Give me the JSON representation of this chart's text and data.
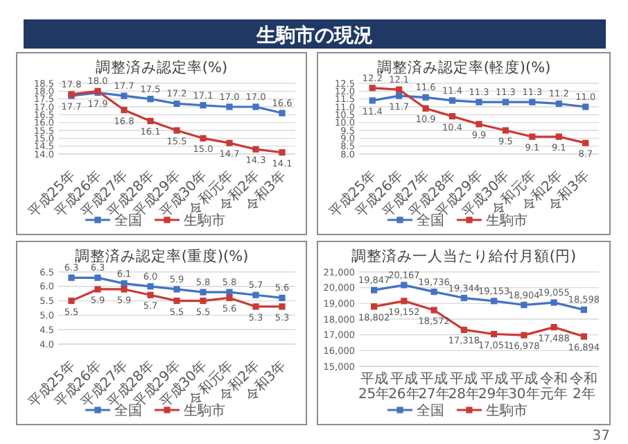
{
  "chart_data": [
    {
      "type": "other",
      "title": "生駒市の現況",
      "annotations": [
        "37"
      ]
    },
    {
      "type": "line",
      "title": "調整済み認定率(%)",
      "categories": [
        "平成25年",
        "平成26年",
        "平成27年",
        "平成28年",
        "平成29年",
        "平成30年",
        "令和元年",
        "令和2年",
        "令和3年"
      ],
      "series": [
        {
          "name": "全国",
          "color": "#4472c4",
          "values": [
            17.7,
            17.9,
            17.7,
            17.5,
            17.2,
            17.1,
            17.0,
            17.0,
            16.6
          ],
          "value_labels": [
            "17.7",
            "17.9",
            "17.7",
            "17.5",
            "17.2",
            "17.1",
            "17.0",
            "17.0",
            "16.6"
          ]
        },
        {
          "name": "生駒市",
          "color": "#c93a36",
          "values": [
            17.8,
            18.0,
            16.8,
            16.1,
            15.5,
            15.0,
            14.7,
            14.3,
            14.1
          ],
          "value_labels": [
            "17.8",
            "18.0",
            "16.8",
            "16.1",
            "15.5",
            "15.0",
            "14.7",
            "14.3",
            "14.1"
          ]
        }
      ],
      "ylim": [
        14,
        18.5
      ],
      "yticks": [
        {
          "value": 14,
          "label": "14.0"
        },
        14.5,
        {
          "value": 15,
          "label": "15.0"
        },
        15.5,
        {
          "value": 16,
          "label": "16.0"
        },
        16.5,
        {
          "value": 17,
          "label": "17.0"
        },
        17.5,
        {
          "value": 18,
          "label": "18.0"
        },
        18.5
      ],
      "grid": "y",
      "legend": "bottom",
      "marker": "square"
    },
    {
      "type": "line",
      "title": "調整済み認定率(軽度)(%)",
      "categories": [
        "平成25年",
        "平成26年",
        "平成27年",
        "平成28年",
        "平成29年",
        "平成30年",
        "令和元年",
        "令和2年",
        "令和3年"
      ],
      "series": [
        {
          "name": "全国",
          "color": "#4472c4",
          "values": [
            11.4,
            11.7,
            11.6,
            11.4,
            11.3,
            11.3,
            11.3,
            11.2,
            11.0
          ],
          "value_labels": [
            "11.4",
            "11.7",
            "11.6",
            "11.4",
            "11.3",
            "11.3",
            "11.3",
            "11.2",
            "11.0"
          ]
        },
        {
          "name": "生駒市",
          "color": "#c93a36",
          "values": [
            12.2,
            12.1,
            10.9,
            10.4,
            9.9,
            9.5,
            9.1,
            9.1,
            8.7
          ],
          "value_labels": [
            "12.2",
            "12.1",
            "10.9",
            "10.4",
            "9.9",
            "9.5",
            "9.1",
            "9.1",
            "8.7"
          ]
        }
      ],
      "ylim": [
        8,
        12.5
      ],
      "yticks": [
        {
          "value": 8,
          "label": "8.0"
        },
        8.5,
        {
          "value": 9,
          "label": "9.0"
        },
        9.5,
        {
          "value": 10,
          "label": "10.0"
        },
        10.5,
        {
          "value": 11,
          "label": "11.0"
        },
        11.5,
        {
          "value": 12,
          "label": "12.0"
        },
        12.5
      ],
      "grid": "y",
      "legend": "bottom",
      "marker": "square"
    },
    {
      "type": "line",
      "title": "調整済み認定率(重度)(%)",
      "categories": [
        "平成25年",
        "平成26年",
        "平成27年",
        "平成28年",
        "平成29年",
        "平成30年",
        "令和元年",
        "令和2年",
        "令和3年"
      ],
      "series": [
        {
          "name": "全国",
          "color": "#4472c4",
          "values": [
            6.3,
            6.3,
            6.1,
            6.0,
            5.9,
            5.8,
            5.8,
            5.7,
            5.6
          ],
          "value_labels": [
            "6.3",
            "6.3",
            "6.1",
            "6.0",
            "5.9",
            "5.8",
            "5.8",
            "5.7",
            "5.6"
          ]
        },
        {
          "name": "生駒市",
          "color": "#c93a36",
          "values": [
            5.5,
            5.9,
            5.9,
            5.7,
            5.5,
            5.5,
            5.6,
            5.3,
            5.3
          ],
          "value_labels": [
            "5.5",
            "5.9",
            "5.9",
            "5.7",
            "5.5",
            "5.5",
            "5.6",
            "5.3",
            "5.3"
          ]
        }
      ],
      "ylim": [
        4,
        6.5
      ],
      "yticks": [
        {
          "value": 4,
          "label": "4.0"
        },
        4.5,
        {
          "value": 5,
          "label": "5.0"
        },
        5.5,
        {
          "value": 6,
          "label": "6.0"
        },
        6.5
      ],
      "grid": "y",
      "legend": "bottom",
      "marker": "square"
    },
    {
      "type": "line",
      "title": "調整済み一人当たり給付月額(円)",
      "categories": [
        "平成25年",
        "平成26年",
        "平成27年",
        "平成28年",
        "平成29年",
        "平成30年",
        "令和元年",
        "令和2年"
      ],
      "series": [
        {
          "name": "全国",
          "color": "#4472c4",
          "values": [
            19847,
            20167,
            19736,
            19344,
            19153,
            18904,
            19055,
            18598
          ],
          "value_labels": [
            "19,847",
            "20,167",
            "19,736",
            "19,344",
            "19,153",
            "18,904",
            "19,055",
            "18,598"
          ]
        },
        {
          "name": "生駒市",
          "color": "#c93a36",
          "values": [
            18802,
            19152,
            18572,
            17318,
            17051,
            16978,
            17488,
            16894
          ],
          "value_labels": [
            "18,802",
            "19,152",
            "18,572",
            "17,318",
            "17,051",
            "16,978",
            "17,488",
            "16,894"
          ]
        }
      ],
      "ylim": [
        15000,
        21000
      ],
      "yticks": [
        {
          "value": 15000,
          "label": "15,000"
        },
        {
          "value": 16000,
          "label": "16,000"
        },
        {
          "value": 17000,
          "label": "17,000"
        },
        {
          "value": 18000,
          "label": "18,000"
        },
        {
          "value": 19000,
          "label": "19,000"
        },
        {
          "value": 20000,
          "label": "20,000"
        },
        {
          "value": 21000,
          "label": "21,000"
        }
      ],
      "grid": "y",
      "legend": "bottom",
      "marker": "square"
    }
  ]
}
